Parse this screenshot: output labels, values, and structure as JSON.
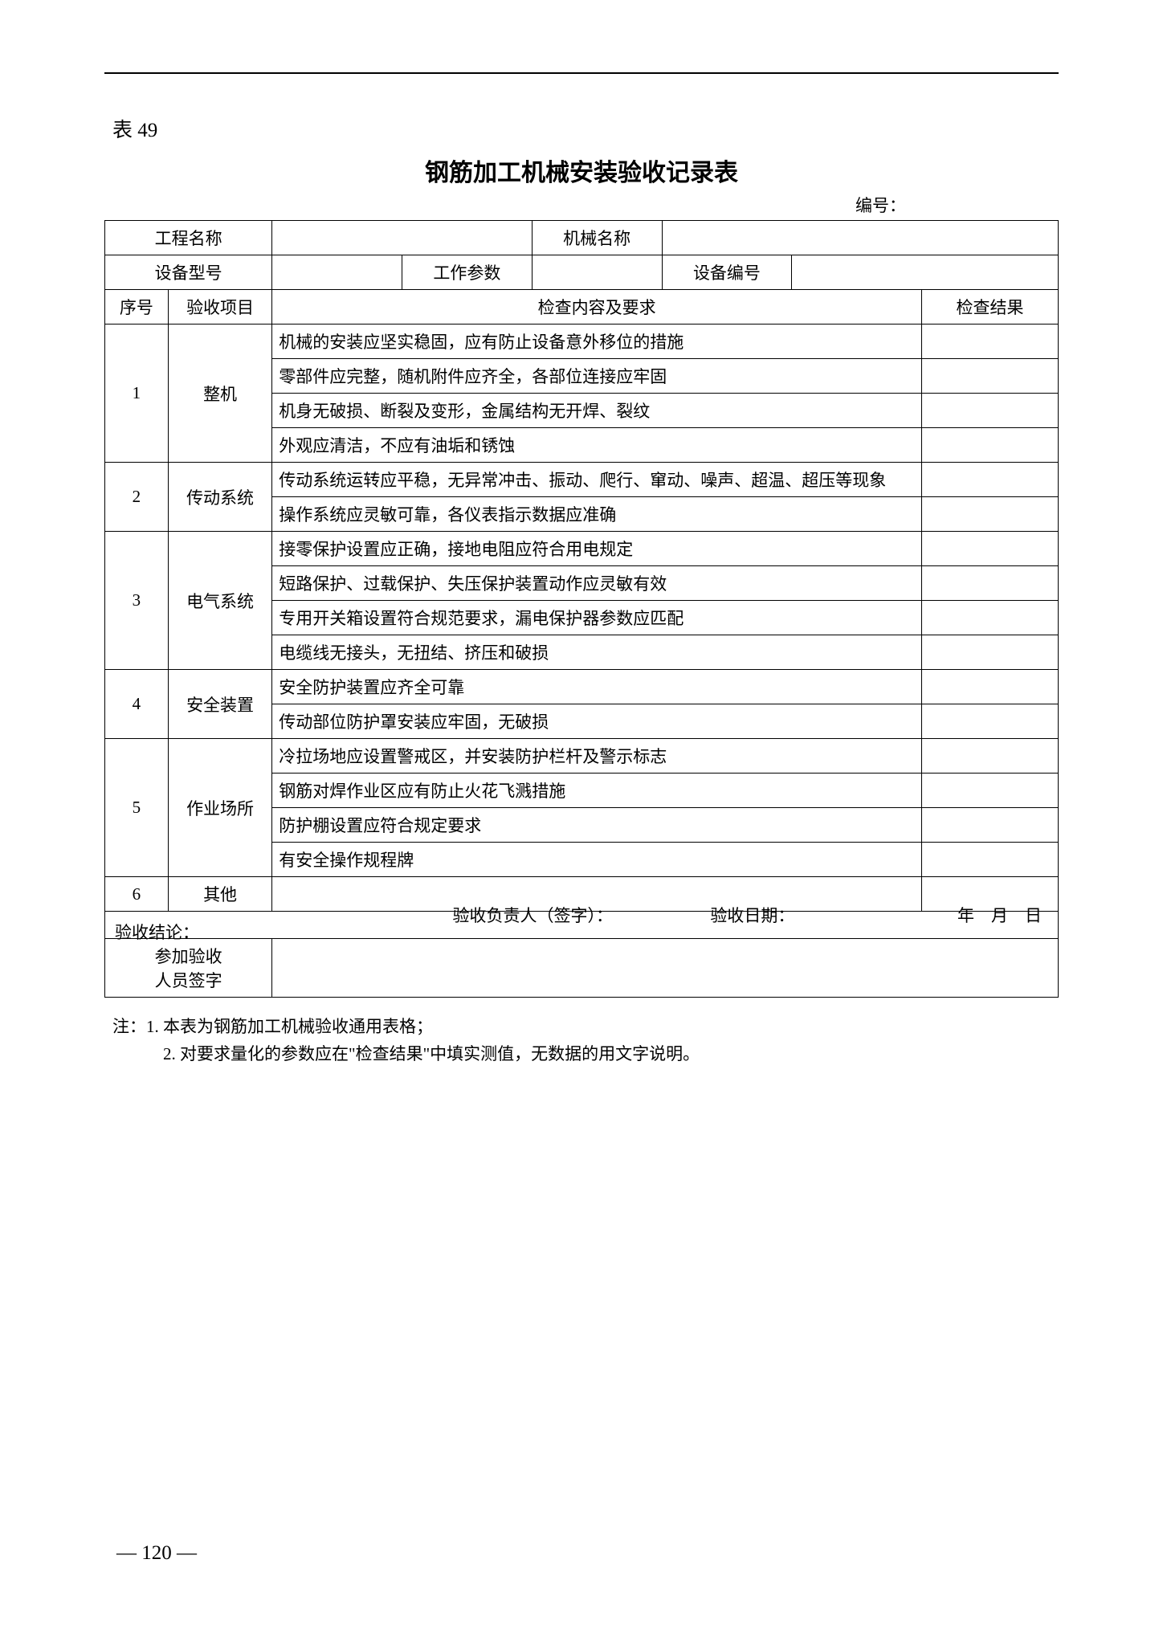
{
  "tableLabel": "表 49",
  "title": "钢筋加工机械安装验收记录表",
  "serialLabel": "编号：",
  "headerRow1": {
    "projectName": "工程名称",
    "machineName": "机械名称"
  },
  "headerRow2": {
    "equipModel": "设备型号",
    "workParam": "工作参数",
    "equipNo": "设备编号"
  },
  "tableHead": {
    "seq": "序号",
    "item": "验收项目",
    "content": "检查内容及要求",
    "result": "检查结果"
  },
  "sections": [
    {
      "seq": "1",
      "item": "整机",
      "rows": [
        "机械的安装应坚实稳固，应有防止设备意外移位的措施",
        "零部件应完整，随机附件应齐全，各部位连接应牢固",
        "机身无破损、断裂及变形，金属结构无开焊、裂纹",
        "外观应清洁，不应有油垢和锈蚀"
      ]
    },
    {
      "seq": "2",
      "item": "传动系统",
      "rows": [
        "传动系统运转应平稳，无异常冲击、振动、爬行、窜动、噪声、超温、超压等现象",
        "操作系统应灵敏可靠，各仪表指示数据应准确"
      ]
    },
    {
      "seq": "3",
      "item": "电气系统",
      "rows": [
        "接零保护设置应正确，接地电阻应符合用电规定",
        "短路保护、过载保护、失压保护装置动作应灵敏有效",
        "专用开关箱设置符合规范要求，漏电保护器参数应匹配",
        "电缆线无接头，无扭结、挤压和破损"
      ]
    },
    {
      "seq": "4",
      "item": "安全装置",
      "rows": [
        "安全防护装置应齐全可靠",
        "传动部位防护罩安装应牢固，无破损"
      ]
    },
    {
      "seq": "5",
      "item": "作业场所",
      "rows": [
        "冷拉场地应设置警戒区，并安装防护栏杆及警示标志",
        "钢筋对焊作业区应有防止火花飞溅措施",
        "防护棚设置应符合规定要求",
        "有安全操作规程牌"
      ]
    },
    {
      "seq": "6",
      "item": "其他",
      "rows": [
        ""
      ]
    }
  ],
  "conclusion": {
    "label": "验收结论：",
    "personLabel": "验收负责人（签字）：",
    "dateLabel": "验收日期：",
    "dateFormat": "年　月　日"
  },
  "signers": "参加验收\n人员签字",
  "notes": {
    "prefix": "注：",
    "line1": "1. 本表为钢筋加工机械验收通用表格；",
    "line2": "2. 对要求量化的参数应在\"检查结果\"中填实测值，无数据的用文字说明。"
  },
  "pageNumber": "— 120 —"
}
